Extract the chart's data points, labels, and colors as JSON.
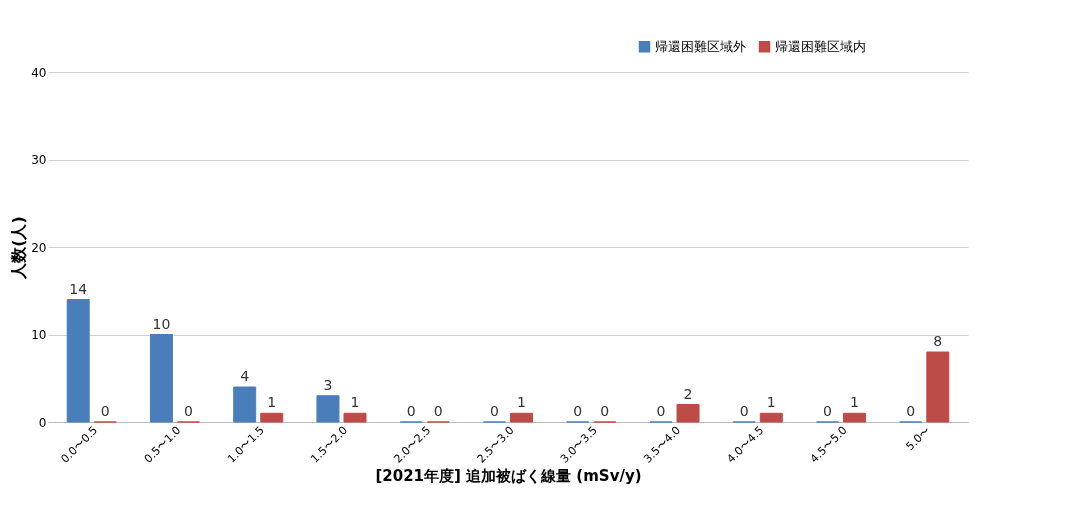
{
  "chart_data": {
    "type": "bar",
    "xlabel": "[2021年度] 追加被ばく線量 (mSv/y)",
    "ylabel": "人数(人)",
    "categories": [
      "0.0〜0.5",
      "0.5〜1.0",
      "1.0〜1.5",
      "1.5〜2.0",
      "2.0〜2.5",
      "2.5〜3.0",
      "3.0〜3.5",
      "3.5〜4.0",
      "4.0〜4.5",
      "4.5〜5.0",
      "5.0〜"
    ],
    "series": [
      {
        "name": "帰還困難区域外",
        "color": "#4a7ebb",
        "values": [
          14,
          10,
          4,
          3,
          0,
          0,
          0,
          0,
          0,
          0,
          0
        ]
      },
      {
        "name": "帰還困難区域内",
        "color": "#be4b48",
        "values": [
          0,
          0,
          1,
          1,
          0,
          1,
          0,
          2,
          1,
          1,
          8
        ]
      }
    ],
    "ylim": [
      0,
      40
    ],
    "yticks": [
      0,
      10,
      20,
      30,
      40
    ],
    "grid": "y",
    "legend": "top right",
    "data_labels": true
  }
}
